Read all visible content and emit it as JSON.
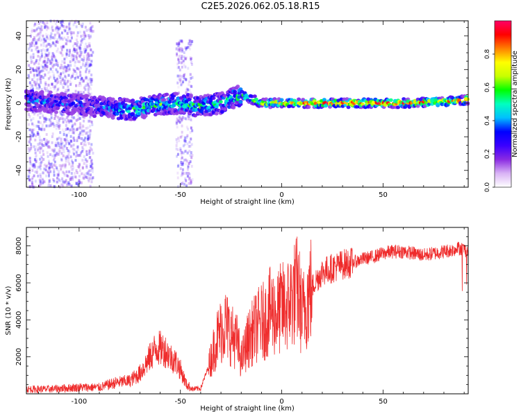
{
  "title": "C2E5.2026.062.05.18.R15",
  "chart_data": [
    {
      "type": "heatmap",
      "title": "C2E5.2026.062.05.18.R15",
      "xlabel": "Height of straight line (km)",
      "ylabel": "Frequency (Hz)",
      "xlim": [
        -126,
        92
      ],
      "ylim": [
        -50,
        49
      ],
      "xticks": [
        -100,
        -50,
        0,
        50
      ],
      "yticks": [
        -40,
        -20,
        0,
        20,
        40
      ],
      "colorbar": {
        "label": "Normalized spectral amplitude",
        "range": [
          0,
          1
        ],
        "ticks": [
          0.0,
          0.2,
          0.4,
          0.6,
          0.8
        ],
        "colors": [
          "#ffffff",
          "#d9b3f5",
          "#8a2be2",
          "#3a00ff",
          "#0000ff",
          "#00bfff",
          "#00ffc0",
          "#00ff00",
          "#c8ff00",
          "#ffff00",
          "#ff8000",
          "#ff0000",
          "#ff0066"
        ]
      },
      "ridge": {
        "x": [
          -126,
          -110,
          -90,
          -75,
          -60,
          -50,
          -40,
          -30,
          -20,
          -10,
          0,
          10,
          20,
          40,
          60,
          80,
          92
        ],
        "freq": [
          2,
          0,
          -2,
          -4,
          -1,
          0,
          -2,
          0,
          5,
          0,
          0,
          0,
          0,
          0,
          0,
          1,
          2
        ],
        "intensity": [
          0.35,
          0.3,
          0.3,
          0.45,
          0.5,
          0.45,
          0.5,
          0.45,
          0.55,
          0.65,
          0.75,
          0.8,
          0.85,
          0.9,
          0.85,
          0.75,
          0.85
        ]
      },
      "scatter_bands": [
        {
          "x_range": [
            -125,
            -93
          ],
          "freq_range": [
            -50,
            49
          ]
        },
        {
          "x_range": [
            -52,
            -44
          ],
          "freq_range": [
            -50,
            38
          ]
        }
      ]
    },
    {
      "type": "line",
      "xlabel": "Height of straight line (km)",
      "ylabel": "SNR (10 * v/v)",
      "xlim": [
        -126,
        92
      ],
      "ylim": [
        0,
        9000
      ],
      "xticks": [
        -100,
        -50,
        0,
        50
      ],
      "yticks": [
        2000,
        4000,
        6000,
        8000
      ],
      "color": "#ef2b2b",
      "series": [
        {
          "name": "SNR",
          "x": [
            -126,
            -115,
            -100,
            -90,
            -82,
            -75,
            -70,
            -66,
            -62,
            -58,
            -55,
            -52,
            -50,
            -47,
            -44,
            -40,
            -36,
            -32,
            -28,
            -25,
            -22,
            -20,
            -17,
            -14,
            -11,
            -8,
            -5,
            -3,
            0,
            2,
            5,
            8,
            10,
            13,
            16,
            20,
            25,
            30,
            35,
            40,
            45,
            50,
            55,
            60,
            65,
            70,
            75,
            80,
            85,
            88,
            92
          ],
          "values": [
            250,
            250,
            350,
            350,
            600,
            700,
            1100,
            1800,
            2500,
            2400,
            2000,
            1700,
            1300,
            500,
            250,
            300,
            1500,
            3000,
            3800,
            3200,
            2800,
            1800,
            2800,
            3400,
            3800,
            4000,
            4600,
            4200,
            4700,
            4600,
            5200,
            5700,
            4200,
            5300,
            6000,
            6600,
            6800,
            7000,
            7100,
            7300,
            7400,
            7600,
            7700,
            7700,
            7600,
            7500,
            7600,
            7700,
            7800,
            7900,
            7700
          ]
        }
      ]
    }
  ]
}
